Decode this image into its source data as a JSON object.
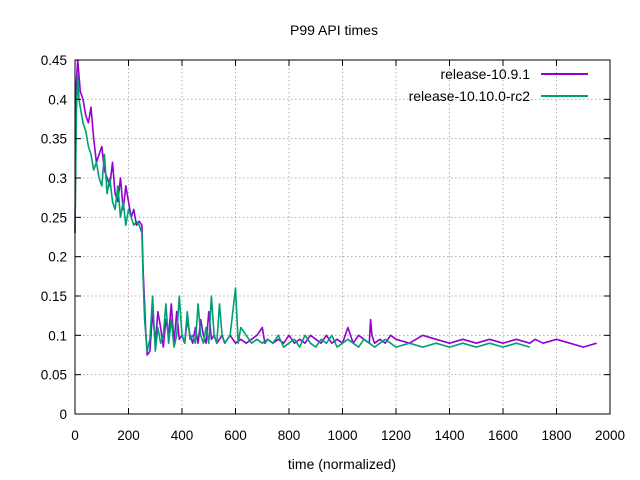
{
  "chart_data": {
    "type": "line",
    "title": "P99 API times",
    "xlabel": "time (normalized)",
    "ylabel": "",
    "xlim": [
      0,
      2000
    ],
    "ylim": [
      0,
      0.45
    ],
    "xticks": [
      0,
      200,
      400,
      600,
      800,
      1000,
      1200,
      1400,
      1600,
      1800,
      2000
    ],
    "yticks": [
      0,
      0.05,
      0.1,
      0.15,
      0.2,
      0.25,
      0.3,
      0.35,
      0.4,
      0.45
    ],
    "xtick_labels": [
      "0",
      "200",
      "400",
      "600",
      "800",
      "1000",
      "1200",
      "1400",
      "1600",
      "1800",
      "2000"
    ],
    "ytick_labels": [
      "0",
      "0.05",
      "0.1",
      "0.15",
      "0.2",
      "0.25",
      "0.3",
      "0.35",
      "0.4",
      "0.45"
    ],
    "grid": true,
    "legend_position": "top-right",
    "series": [
      {
        "name": "release-10.9.1",
        "color": "#9400d3",
        "x": [
          0,
          5,
          10,
          15,
          20,
          30,
          40,
          50,
          60,
          70,
          80,
          90,
          100,
          110,
          120,
          130,
          140,
          150,
          160,
          170,
          180,
          190,
          200,
          210,
          220,
          230,
          240,
          250,
          255,
          260,
          265,
          270,
          280,
          290,
          300,
          310,
          320,
          330,
          340,
          350,
          360,
          370,
          380,
          390,
          400,
          410,
          420,
          430,
          440,
          450,
          460,
          470,
          480,
          490,
          500,
          510,
          520,
          530,
          540,
          550,
          560,
          580,
          600,
          620,
          640,
          660,
          680,
          700,
          710,
          720,
          740,
          760,
          780,
          800,
          820,
          840,
          860,
          880,
          900,
          920,
          940,
          960,
          980,
          1000,
          1020,
          1040,
          1060,
          1080,
          1100,
          1105,
          1110,
          1120,
          1140,
          1160,
          1180,
          1200,
          1250,
          1300,
          1350,
          1400,
          1450,
          1500,
          1550,
          1600,
          1650,
          1700,
          1720,
          1750,
          1800,
          1850,
          1900,
          1950
        ],
        "y": [
          0.23,
          0.42,
          0.45,
          0.43,
          0.41,
          0.4,
          0.38,
          0.37,
          0.39,
          0.35,
          0.32,
          0.33,
          0.34,
          0.31,
          0.3,
          0.29,
          0.32,
          0.28,
          0.27,
          0.3,
          0.26,
          0.29,
          0.27,
          0.25,
          0.26,
          0.24,
          0.245,
          0.24,
          0.18,
          0.14,
          0.1,
          0.075,
          0.08,
          0.13,
          0.09,
          0.13,
          0.11,
          0.085,
          0.12,
          0.1,
          0.14,
          0.09,
          0.13,
          0.095,
          0.1,
          0.09,
          0.12,
          0.1,
          0.09,
          0.11,
          0.09,
          0.12,
          0.1,
          0.09,
          0.13,
          0.095,
          0.1,
          0.09,
          0.095,
          0.1,
          0.09,
          0.1,
          0.09,
          0.095,
          0.09,
          0.095,
          0.1,
          0.11,
          0.09,
          0.095,
          0.09,
          0.095,
          0.09,
          0.1,
          0.09,
          0.095,
          0.09,
          0.1,
          0.095,
          0.09,
          0.1,
          0.09,
          0.095,
          0.09,
          0.11,
          0.09,
          0.1,
          0.095,
          0.09,
          0.12,
          0.1,
          0.09,
          0.095,
          0.09,
          0.1,
          0.095,
          0.09,
          0.1,
          0.095,
          0.09,
          0.095,
          0.09,
          0.095,
          0.09,
          0.095,
          0.09,
          0.095,
          0.09,
          0.095,
          0.09,
          0.085,
          0.09
        ]
      },
      {
        "name": "release-10.10.0-rc2",
        "color": "#009e73",
        "x": [
          0,
          5,
          10,
          15,
          20,
          30,
          40,
          50,
          60,
          70,
          80,
          90,
          100,
          110,
          120,
          130,
          140,
          150,
          160,
          170,
          180,
          190,
          200,
          210,
          220,
          230,
          240,
          250,
          255,
          260,
          265,
          270,
          280,
          290,
          300,
          310,
          320,
          330,
          340,
          350,
          360,
          370,
          380,
          390,
          400,
          410,
          420,
          430,
          440,
          450,
          460,
          470,
          480,
          490,
          500,
          510,
          520,
          530,
          540,
          550,
          560,
          580,
          600,
          610,
          620,
          640,
          660,
          680,
          700,
          720,
          740,
          760,
          780,
          800,
          820,
          840,
          860,
          880,
          900,
          920,
          940,
          960,
          980,
          1000,
          1020,
          1040,
          1060,
          1080,
          1100,
          1120,
          1140,
          1160,
          1180,
          1200,
          1250,
          1300,
          1350,
          1400,
          1450,
          1500,
          1550,
          1600,
          1650,
          1700
        ],
        "y": [
          0.23,
          0.38,
          0.43,
          0.4,
          0.39,
          0.37,
          0.36,
          0.34,
          0.33,
          0.31,
          0.32,
          0.3,
          0.29,
          0.33,
          0.28,
          0.3,
          0.27,
          0.26,
          0.29,
          0.25,
          0.27,
          0.24,
          0.26,
          0.25,
          0.24,
          0.245,
          0.24,
          0.23,
          0.17,
          0.12,
          0.1,
          0.08,
          0.095,
          0.15,
          0.08,
          0.11,
          0.09,
          0.1,
          0.14,
          0.09,
          0.12,
          0.085,
          0.1,
          0.15,
          0.1,
          0.09,
          0.13,
          0.095,
          0.1,
          0.09,
          0.14,
          0.1,
          0.09,
          0.11,
          0.09,
          0.15,
          0.1,
          0.09,
          0.14,
          0.1,
          0.09,
          0.1,
          0.16,
          0.09,
          0.11,
          0.1,
          0.09,
          0.095,
          0.09,
          0.095,
          0.09,
          0.1,
          0.085,
          0.09,
          0.095,
          0.085,
          0.1,
          0.09,
          0.085,
          0.095,
          0.09,
          0.1,
          0.085,
          0.09,
          0.095,
          0.09,
          0.085,
          0.095,
          0.09,
          0.085,
          0.09,
          0.095,
          0.09,
          0.085,
          0.09,
          0.085,
          0.09,
          0.085,
          0.09,
          0.085,
          0.09,
          0.085,
          0.09,
          0.085
        ]
      }
    ]
  }
}
